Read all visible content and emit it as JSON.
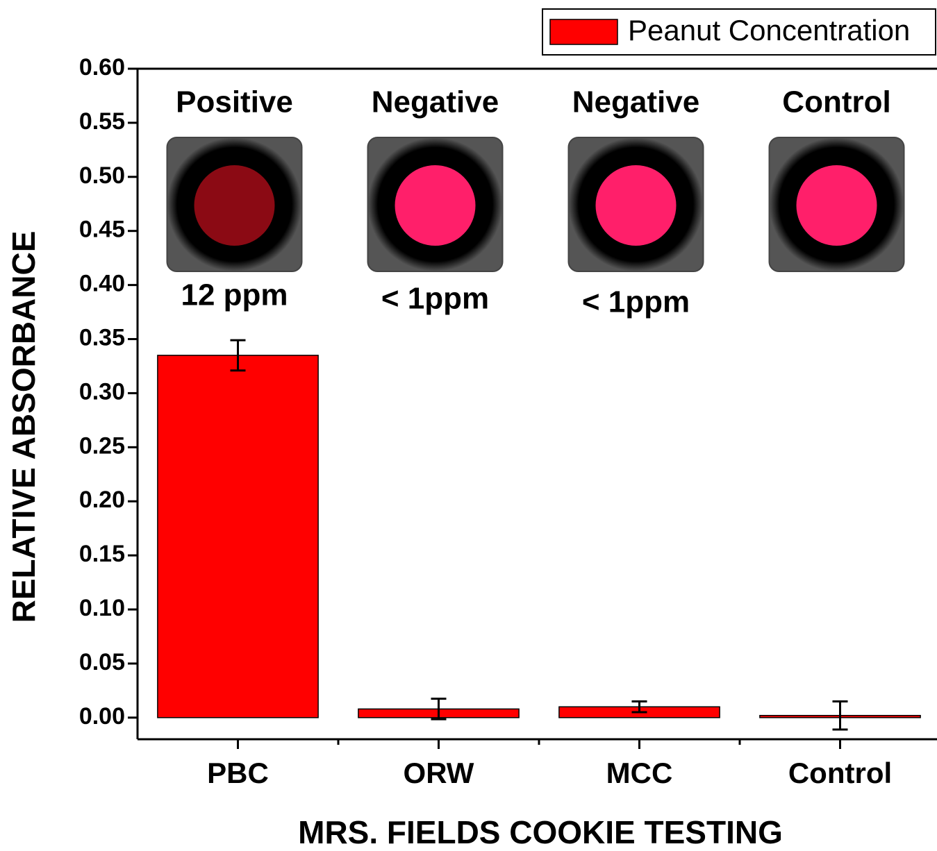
{
  "chart_data": {
    "type": "bar",
    "x_label": "MRS. FIELDS COOKIE TESTING",
    "y_label": "RELATIVE ABSORBANCE",
    "categories": [
      "PBC",
      "ORW",
      "MCC",
      "Control"
    ],
    "series": [
      {
        "name": "Peanut Concentration",
        "color": "#ff0000",
        "values": [
          0.335,
          0.008,
          0.01,
          0.002
        ],
        "errors": [
          0.014,
          0.0095,
          0.005,
          0.013
        ]
      }
    ],
    "ylim": [
      -0.02,
      0.6
    ],
    "yticks": [
      {
        "value": 0,
        "label": "0.00"
      },
      {
        "value": 0.05,
        "label": "0.05"
      },
      {
        "value": 0.1,
        "label": "0.10"
      },
      {
        "value": 0.15,
        "label": "0.15"
      },
      {
        "value": 0.2,
        "label": "0.20"
      },
      {
        "value": 0.25,
        "label": "0.25"
      },
      {
        "value": 0.3,
        "label": "0.30"
      },
      {
        "value": 0.35,
        "label": "0.35"
      },
      {
        "value": 0.4,
        "label": "0.40"
      },
      {
        "value": 0.45,
        "label": "0.45"
      },
      {
        "value": 0.5,
        "label": "0.50"
      },
      {
        "value": 0.55,
        "label": "0.55"
      },
      {
        "value": 0.6,
        "label": "0.60"
      }
    ],
    "legend": "top-right",
    "annotations": [
      {
        "label": "Positive",
        "note": "12 ppm",
        "spot": "#8b0a14"
      },
      {
        "label": "Negative",
        "note": "< 1ppm",
        "spot": "#ff1f6a"
      },
      {
        "label": "Negative",
        "note": "< 1ppm",
        "spot": "#ff1f6a"
      },
      {
        "label": "Control",
        "spot": "#ff1f6a"
      }
    ]
  }
}
